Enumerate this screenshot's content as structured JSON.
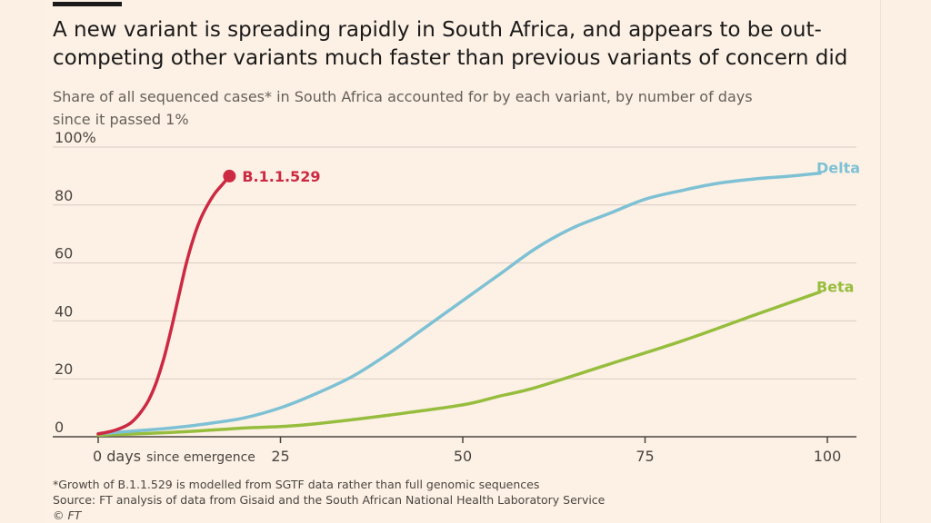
{
  "header": {
    "title": "A new variant is spreading rapidly in South Africa, and appears to be out-competing other variants much faster than previous variants of concern did",
    "subtitle": "Share of all sequenced cases* in South Africa accounted for by each variant, by number of days since it passed 1%"
  },
  "footer": {
    "note": "*Growth of B.1.1.529 is modelled from SGTF data rather than full genomic sequences",
    "source": "Source: FT analysis of data from Gisaid and the South African National Health Laboratory Service",
    "credit": "© FT"
  },
  "colors": {
    "background": "#fdf1e5",
    "b11529": "#cc2942",
    "delta": "#7ec1d4",
    "beta": "#97bd3e",
    "grid": "#d8cdc3",
    "axis": "#4a4540"
  },
  "chart_data": {
    "type": "line",
    "title": "A new variant is spreading rapidly in South Africa, and appears to be out-competing other variants much faster than previous variants of concern did",
    "xlabel": "",
    "ylabel": "",
    "xlim": [
      0,
      100
    ],
    "ylim": [
      0,
      100
    ],
    "grid": true,
    "legend": "inline labels at line ends",
    "x_ticks": [
      0,
      25,
      50,
      75,
      100
    ],
    "x_tick_labels": [
      "0 days",
      "25",
      "50",
      "75",
      "100"
    ],
    "x_first_tick_suffix": "since emergence",
    "y_ticks": [
      0,
      20,
      40,
      60,
      80,
      100
    ],
    "y_tick_labels": [
      "0",
      "20",
      "40",
      "60",
      "80",
      "100%"
    ],
    "series": [
      {
        "name": "B.1.1.529",
        "color": "#cc2942",
        "end_marker": true,
        "x": [
          0,
          2,
          4,
          5,
          6,
          7,
          8,
          9,
          10,
          11,
          12,
          13,
          14,
          15,
          16,
          17,
          18
        ],
        "y": [
          1,
          2,
          4,
          6,
          9,
          13,
          19,
          27,
          37,
          48,
          59,
          68,
          75,
          80,
          84,
          87,
          90
        ]
      },
      {
        "name": "Delta",
        "color": "#7ec1d4",
        "end_marker": false,
        "x": [
          0,
          5,
          10,
          15,
          20,
          25,
          30,
          35,
          40,
          45,
          50,
          55,
          60,
          65,
          70,
          75,
          80,
          85,
          90,
          95,
          99
        ],
        "y": [
          1,
          2,
          3,
          4.5,
          6.5,
          10,
          15,
          21,
          29,
          38,
          47,
          56,
          65,
          72,
          77,
          82,
          85,
          87.5,
          89,
          90,
          91
        ]
      },
      {
        "name": "Beta",
        "color": "#97bd3e",
        "end_marker": false,
        "x": [
          0,
          10,
          20,
          25,
          30,
          40,
          50,
          55,
          60,
          70,
          80,
          90,
          99
        ],
        "y": [
          0.5,
          1.5,
          3,
          3.5,
          4.5,
          7.5,
          11,
          14,
          17,
          25,
          33,
          42,
          50
        ]
      }
    ]
  }
}
